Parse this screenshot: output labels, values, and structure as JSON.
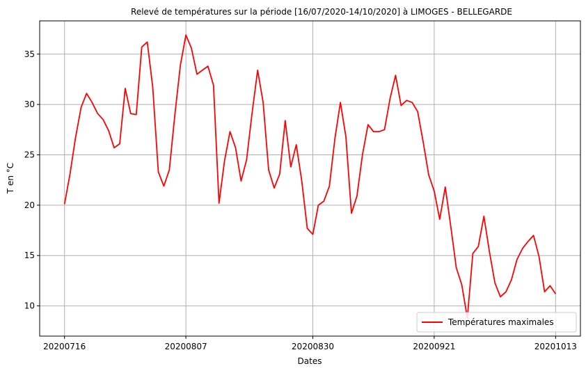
{
  "chart_data": {
    "type": "line",
    "title": "Relevé de températures sur la période [16/07/2020-14/10/2020] à LIMOGES - BELLEGARDE",
    "xlabel": "Dates",
    "ylabel": "T en °C",
    "ylim": [
      7,
      38.3
    ],
    "xlim": [
      -4.5,
      93.5
    ],
    "grid": true,
    "legend_position": "lower right",
    "x_ticks": [
      {
        "index": 0,
        "label": "20200716"
      },
      {
        "index": 22,
        "label": "20200807"
      },
      {
        "index": 45,
        "label": "20200830"
      },
      {
        "index": 67,
        "label": "20200921"
      },
      {
        "index": 89,
        "label": "20201013"
      }
    ],
    "y_ticks": [
      10,
      15,
      20,
      25,
      30,
      35
    ],
    "series": [
      {
        "name": "Températures maximales",
        "color": "#ff0000",
        "x": [
          0,
          1,
          2,
          3,
          4,
          5,
          6,
          7,
          8,
          9,
          10,
          11,
          12,
          13,
          14,
          15,
          16,
          17,
          18,
          19,
          20,
          21,
          22,
          23,
          24,
          25,
          26,
          27,
          28,
          29,
          30,
          31,
          32,
          33,
          34,
          35,
          36,
          37,
          38,
          39,
          40,
          41,
          42,
          43,
          44,
          45,
          46,
          47,
          48,
          49,
          50,
          51,
          52,
          53,
          54,
          55,
          56,
          57,
          58,
          59,
          60,
          61,
          62,
          63,
          64,
          65,
          66,
          67,
          68,
          69,
          70,
          71,
          72,
          73,
          74,
          75,
          76,
          77,
          78,
          79,
          80,
          81,
          82,
          83,
          84,
          85,
          86,
          87,
          88,
          89
        ],
        "values": [
          20.1,
          23.1,
          26.7,
          29.7,
          31.1,
          30.2,
          29.1,
          28.5,
          27.4,
          25.7,
          26.1,
          31.6,
          29.1,
          29.0,
          35.7,
          36.2,
          31.7,
          23.3,
          21.9,
          23.5,
          29.0,
          33.9,
          36.9,
          35.6,
          33.0,
          33.4,
          33.8,
          31.9,
          20.2,
          24.4,
          27.3,
          25.7,
          22.4,
          24.5,
          29.2,
          33.4,
          30.2,
          23.5,
          21.7,
          23.1,
          28.4,
          23.8,
          26.0,
          22.4,
          17.7,
          17.1,
          20.0,
          20.4,
          21.9,
          26.6,
          30.2,
          26.8,
          19.2,
          20.9,
          25.0,
          28.0,
          27.3,
          27.3,
          27.5,
          30.6,
          32.9,
          29.9,
          30.4,
          30.2,
          29.3,
          26.3,
          23.0,
          21.4,
          18.6,
          21.8,
          17.9,
          13.8,
          12.1,
          8.8,
          15.2,
          15.9,
          18.9,
          15.4,
          12.3,
          10.9,
          11.4,
          12.6,
          14.6,
          15.7,
          16.4,
          17.0,
          14.9,
          11.4,
          12.0,
          11.2
        ]
      }
    ]
  }
}
